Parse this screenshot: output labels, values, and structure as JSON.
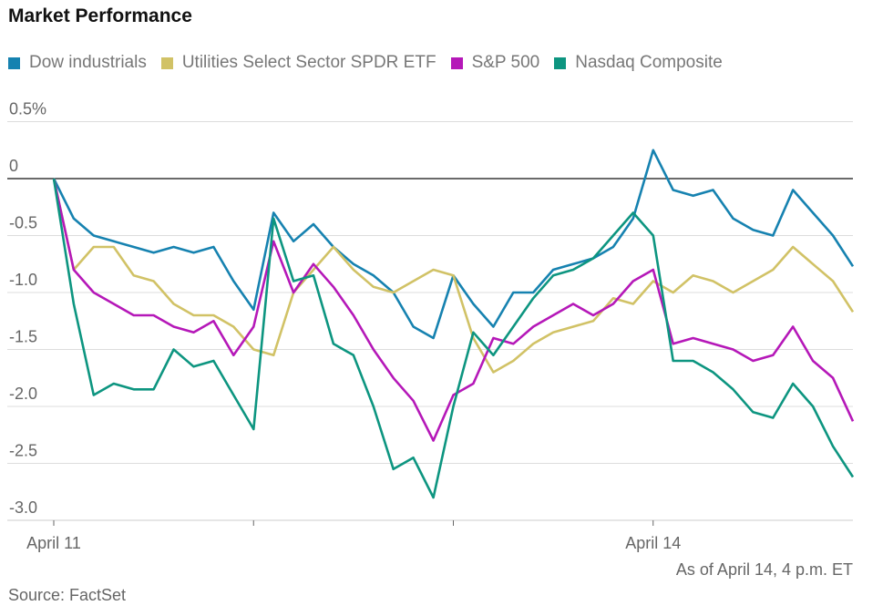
{
  "title": "Market Performance",
  "note": "As of April 14, 4 p.m. ET",
  "source": "Source: FactSet",
  "chart_data": {
    "type": "line",
    "ylim": [
      -3.0,
      0.5
    ],
    "yticks": [
      {
        "v": 0.5,
        "label": "0.5%"
      },
      {
        "v": 0,
        "label": "0"
      },
      {
        "v": -0.5,
        "label": "-0.5"
      },
      {
        "v": -1.0,
        "label": "-1.0"
      },
      {
        "v": -1.5,
        "label": "-1.5"
      },
      {
        "v": -2.0,
        "label": "-2.0"
      },
      {
        "v": -2.5,
        "label": "-2.5"
      },
      {
        "v": -3.0,
        "label": "-3.0"
      }
    ],
    "xticks": [
      {
        "i": 0,
        "label": "April 11"
      },
      {
        "i": 10,
        "label": ""
      },
      {
        "i": 20,
        "label": ""
      },
      {
        "i": 30,
        "label": "April 14"
      }
    ],
    "grid": true,
    "legend": "top-left",
    "series": [
      {
        "name": "Dow industrials",
        "color": "#1682b0",
        "values": [
          0,
          -0.35,
          -0.5,
          -0.55,
          -0.6,
          -0.65,
          -0.6,
          -0.65,
          -0.6,
          -0.9,
          -1.15,
          -0.3,
          -0.55,
          -0.4,
          -0.6,
          -0.75,
          -0.85,
          -1.0,
          -1.3,
          -1.4,
          -0.85,
          -1.1,
          -1.3,
          -1.0,
          -1.0,
          -0.8,
          -0.75,
          -0.7,
          -0.6,
          -0.35,
          0.25,
          -0.1,
          -0.15,
          -0.1,
          -0.35,
          -0.45,
          -0.5,
          -0.1,
          -0.3,
          -0.5,
          -0.77
        ]
      },
      {
        "name": "Utilities Select Sector SPDR ETF",
        "color": "#d1c266",
        "values": [
          0,
          -0.8,
          -0.6,
          -0.6,
          -0.85,
          -0.9,
          -1.1,
          -1.2,
          -1.2,
          -1.3,
          -1.5,
          -1.55,
          -1.0,
          -0.8,
          -0.6,
          -0.8,
          -0.95,
          -1.0,
          -0.9,
          -0.8,
          -0.85,
          -1.4,
          -1.7,
          -1.6,
          -1.45,
          -1.35,
          -1.3,
          -1.25,
          -1.05,
          -1.1,
          -0.9,
          -1.0,
          -0.85,
          -0.9,
          -1.0,
          -0.9,
          -0.8,
          -0.6,
          -0.75,
          -0.9,
          -1.17
        ]
      },
      {
        "name": "S&P 500",
        "color": "#b518b8",
        "values": [
          0,
          -0.8,
          -1.0,
          -1.1,
          -1.2,
          -1.2,
          -1.3,
          -1.35,
          -1.25,
          -1.55,
          -1.3,
          -0.55,
          -1.0,
          -0.75,
          -0.95,
          -1.2,
          -1.5,
          -1.75,
          -1.95,
          -2.3,
          -1.9,
          -1.8,
          -1.4,
          -1.45,
          -1.3,
          -1.2,
          -1.1,
          -1.2,
          -1.1,
          -0.9,
          -0.8,
          -1.45,
          -1.4,
          -1.45,
          -1.5,
          -1.6,
          -1.55,
          -1.3,
          -1.6,
          -1.75,
          -2.13
        ]
      },
      {
        "name": "Nasdaq Composite",
        "color": "#0d9580",
        "values": [
          0,
          -1.1,
          -1.9,
          -1.8,
          -1.85,
          -1.85,
          -1.5,
          -1.65,
          -1.6,
          -1.9,
          -2.2,
          -0.35,
          -0.9,
          -0.85,
          -1.45,
          -1.55,
          -2.0,
          -2.55,
          -2.45,
          -2.8,
          -2.0,
          -1.35,
          -1.55,
          -1.3,
          -1.05,
          -0.85,
          -0.8,
          -0.7,
          -0.5,
          -0.3,
          -0.5,
          -1.6,
          -1.6,
          -1.7,
          -1.85,
          -2.05,
          -2.1,
          -1.8,
          -2.0,
          -2.35,
          -2.62
        ]
      }
    ]
  }
}
